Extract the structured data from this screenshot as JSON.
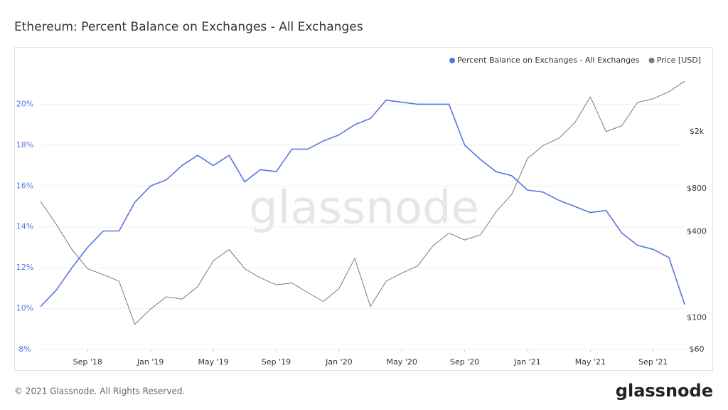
{
  "chart_data": {
    "type": "line",
    "title": "Ethereum: Percent Balance on Exchanges - All Exchanges",
    "watermark": "glassnode",
    "footer": "© 2021 Glassnode. All Rights Reserved.",
    "brand": "glassnode",
    "x": [
      "2018-06",
      "2018-07",
      "2018-08",
      "2018-09",
      "2018-10",
      "2018-11",
      "2018-12",
      "2019-01",
      "2019-02",
      "2019-03",
      "2019-04",
      "2019-05",
      "2019-06",
      "2019-07",
      "2019-08",
      "2019-09",
      "2019-10",
      "2019-11",
      "2019-12",
      "2020-01",
      "2020-02",
      "2020-03",
      "2020-04",
      "2020-05",
      "2020-06",
      "2020-07",
      "2020-08",
      "2020-09",
      "2020-10",
      "2020-11",
      "2020-12",
      "2021-01",
      "2021-02",
      "2021-03",
      "2021-04",
      "2021-05",
      "2021-06",
      "2021-07",
      "2021-08",
      "2021-09",
      "2021-10",
      "2021-11"
    ],
    "xlim": [
      "2018-06",
      "2021-11"
    ],
    "xticks": [
      {
        "value": "2018-09",
        "label": "Sep '18"
      },
      {
        "value": "2019-01",
        "label": "Jan '19"
      },
      {
        "value": "2019-05",
        "label": "May '19"
      },
      {
        "value": "2019-09",
        "label": "Sep '19"
      },
      {
        "value": "2020-01",
        "label": "Jan '20"
      },
      {
        "value": "2020-05",
        "label": "May '20"
      },
      {
        "value": "2020-09",
        "label": "Sep '20"
      },
      {
        "value": "2021-01",
        "label": "Jan '21"
      },
      {
        "value": "2021-05",
        "label": "May '21"
      },
      {
        "value": "2021-09",
        "label": "Sep '21"
      }
    ],
    "ylim": [
      8,
      22
    ],
    "yticks": [
      {
        "value": 8,
        "label": "8%"
      },
      {
        "value": 10,
        "label": "10%"
      },
      {
        "value": 12,
        "label": "12%"
      },
      {
        "value": 14,
        "label": "14%"
      },
      {
        "value": 16,
        "label": "16%"
      },
      {
        "value": 18,
        "label": "18%"
      },
      {
        "value": 20,
        "label": "20%"
      }
    ],
    "y2lim": [
      60,
      6000
    ],
    "y2log": true,
    "y2ticks": [
      {
        "value": 60,
        "label": "$60"
      },
      {
        "value": 100,
        "label": "$100"
      },
      {
        "value": 400,
        "label": "$400"
      },
      {
        "value": 800,
        "label": "$800"
      },
      {
        "value": 2000,
        "label": "$2k"
      }
    ],
    "grid": true,
    "legend": "top-right",
    "series": [
      {
        "name": "Percent Balance on Exchanges - All Exchanges",
        "color": "#5b73e0",
        "values": [
          10.1,
          10.9,
          12.0,
          13.0,
          13.8,
          13.8,
          15.2,
          16.0,
          16.3,
          17.0,
          17.5,
          17.0,
          17.5,
          16.2,
          16.8,
          16.7,
          17.8,
          17.8,
          18.2,
          18.5,
          19.0,
          19.3,
          20.2,
          20.1,
          20.0,
          20.0,
          20.0,
          18.0,
          17.3,
          16.7,
          16.5,
          15.8,
          15.7,
          15.3,
          15.0,
          14.7,
          14.8,
          13.7,
          13.1,
          12.9,
          12.5,
          10.2
        ]
      },
      {
        "name": "Price [USD]",
        "color": "#7a7a7a",
        "axis": "y2",
        "values": [
          650,
          450,
          300,
          220,
          200,
          180,
          90,
          115,
          140,
          135,
          165,
          250,
          300,
          220,
          190,
          170,
          175,
          150,
          130,
          160,
          260,
          120,
          180,
          205,
          230,
          320,
          390,
          350,
          380,
          550,
          730,
          1300,
          1600,
          1800,
          2300,
          3500,
          2000,
          2200,
          3200,
          3400,
          3800,
          4500
        ]
      }
    ]
  }
}
